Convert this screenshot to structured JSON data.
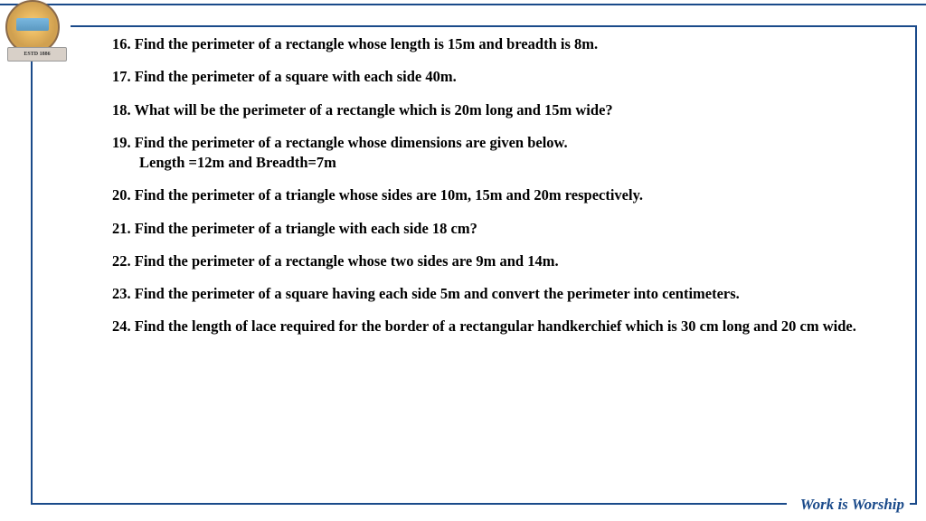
{
  "logo": {
    "ribbon_text": "ESTD 1886",
    "border_color": "#1a4a8a"
  },
  "questions": [
    {
      "num": "16.",
      "text": "Find the perimeter of a rectangle whose length is 15m and breadth is 8m."
    },
    {
      "num": "17.",
      "text": "Find the perimeter of a square with each side  40m."
    },
    {
      "num": "18.",
      "text": "What will be the perimeter of a rectangle which is 20m long and 15m wide?"
    },
    {
      "num": "19.",
      "text": "Find the perimeter of a rectangle whose dimensions are given below.",
      "sub": "Length =12m and Breadth=7m"
    },
    {
      "num": " 20.",
      "text": "Find the perimeter of a triangle whose sides are 10m, 15m and 20m respectively."
    },
    {
      "num": "21.",
      "text": "Find the perimeter of a triangle with each side 18 cm?"
    },
    {
      "num": " 22.",
      "text": "Find the perimeter of a rectangle whose two sides are  9m and 14m."
    },
    {
      "num": "23.",
      "text": "Find the perimeter of a square having each side 5m and convert the perimeter into centimeters."
    },
    {
      "num": "24.",
      "text": "Find the length of lace required for the border of a rectangular handkerchief which is 30 cm long and 20 cm wide."
    }
  ],
  "footer": {
    "motto": "Work is Worship"
  },
  "style": {
    "text_color": "#000000",
    "accent_color": "#1a4a8a",
    "font_size_pt": 12,
    "font_weight": "bold",
    "background_color": "#ffffff"
  }
}
